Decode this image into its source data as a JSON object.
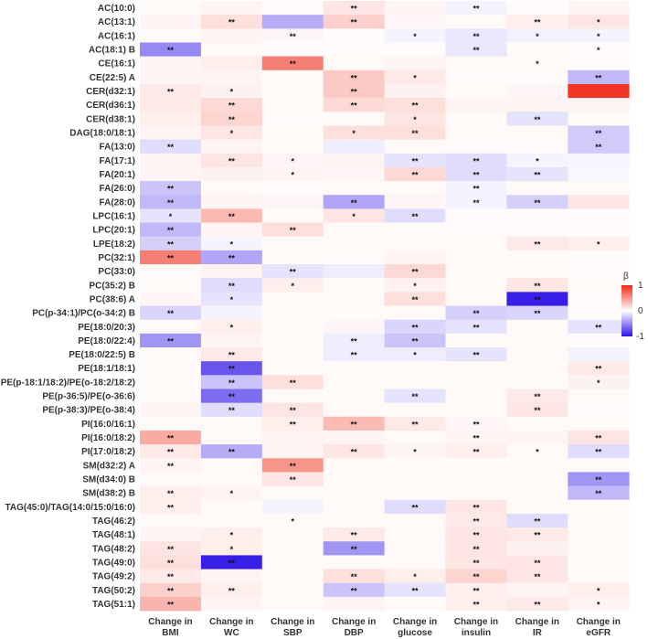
{
  "chart_data": {
    "type": "heatmap",
    "title": "",
    "legend": {
      "title": "β",
      "ticks": [
        "1",
        "0",
        "-1"
      ],
      "max": 1,
      "min": -1,
      "colors": {
        "high": "#ef2a16",
        "mid": "#ffffff",
        "low": "#2e13e6"
      }
    },
    "columns": [
      [
        "Change in",
        "BMI"
      ],
      [
        "Change in",
        "WC"
      ],
      [
        "Change in",
        "SBP"
      ],
      [
        "Change in",
        "DBP"
      ],
      [
        "Change in",
        "glucose"
      ],
      [
        "Change in",
        "insulin"
      ],
      [
        "Change in",
        "IR"
      ],
      [
        "Change in",
        "eGFR"
      ]
    ],
    "rows": [
      {
        "label": "AC(10:0)",
        "values": [
          0.03,
          0.05,
          0.02,
          0.12,
          0.05,
          -0.05,
          0.02,
          0.05
        ],
        "sig": [
          "",
          "",
          "",
          "**",
          "",
          "**",
          "",
          ""
        ]
      },
      {
        "label": "AC(13:1)",
        "values": [
          0.05,
          0.15,
          -0.35,
          0.22,
          0.04,
          0.03,
          0.08,
          0.12
        ],
        "sig": [
          "",
          "**",
          "",
          "**",
          "",
          "",
          "**",
          "*"
        ]
      },
      {
        "label": "AC(16:1)",
        "values": [
          0.03,
          0.05,
          0.04,
          0.02,
          -0.05,
          -0.1,
          -0.06,
          -0.05
        ],
        "sig": [
          "",
          "",
          "**",
          "",
          "*",
          "**",
          "*",
          "*"
        ]
      },
      {
        "label": "AC(18:1) B",
        "values": [
          -0.5,
          0.03,
          0.02,
          0.02,
          0.02,
          -0.1,
          0.03,
          0.02
        ],
        "sig": [
          "**",
          "",
          "",
          "",
          "",
          "**",
          "",
          "*"
        ]
      },
      {
        "label": "CE(16:1)",
        "values": [
          0.05,
          0.08,
          0.6,
          0.03,
          0.05,
          0.03,
          0.03,
          0.02
        ],
        "sig": [
          "",
          "",
          "**",
          "",
          "",
          "",
          "*",
          ""
        ]
      },
      {
        "label": "CE(22:5) A",
        "values": [
          0.05,
          0.05,
          0.03,
          0.25,
          0.1,
          0.02,
          0.02,
          -0.3
        ],
        "sig": [
          "",
          "",
          "",
          "**",
          "*",
          "",
          "",
          "**"
        ]
      },
      {
        "label": "CER(d32:1)",
        "values": [
          0.1,
          0.06,
          0.03,
          0.25,
          0.06,
          0.03,
          0.04,
          0.95
        ],
        "sig": [
          "**",
          "*",
          "",
          "**",
          "",
          "",
          "",
          ""
        ]
      },
      {
        "label": "CER(d36:1)",
        "values": [
          0.1,
          0.18,
          0.03,
          0.18,
          0.15,
          0.05,
          0.05,
          0.05
        ],
        "sig": [
          "",
          "**",
          "",
          "**",
          "**",
          "",
          "",
          ""
        ]
      },
      {
        "label": "CER(d38:1)",
        "values": [
          0.08,
          0.2,
          0.02,
          0.03,
          0.12,
          0.03,
          -0.12,
          0.03
        ],
        "sig": [
          "",
          "**",
          "",
          "",
          "*",
          "",
          "**",
          ""
        ]
      },
      {
        "label": "DAG(18:0/18:1)",
        "values": [
          0.05,
          0.12,
          0.03,
          0.15,
          0.15,
          0.03,
          0.03,
          -0.22
        ],
        "sig": [
          "",
          "*",
          "",
          "*",
          "**",
          "",
          "",
          "**"
        ]
      },
      {
        "label": "FA(13:0)",
        "values": [
          -0.15,
          0.05,
          0.03,
          -0.08,
          0.03,
          0.02,
          0.02,
          -0.22
        ],
        "sig": [
          "**",
          "",
          "",
          "",
          "",
          "",
          "",
          "**"
        ]
      },
      {
        "label": "FA(17:1)",
        "values": [
          0.05,
          0.12,
          0.04,
          0.05,
          -0.12,
          -0.15,
          -0.05,
          -0.04
        ],
        "sig": [
          "",
          "**",
          "*",
          "",
          "**",
          "**",
          "*",
          ""
        ]
      },
      {
        "label": "FA(20:1)",
        "values": [
          0.05,
          0.06,
          0.05,
          0.04,
          0.18,
          -0.15,
          -0.12,
          -0.03
        ],
        "sig": [
          "",
          "",
          "*",
          "",
          "**",
          "**",
          "**",
          ""
        ]
      },
      {
        "label": "FA(26:0)",
        "values": [
          -0.25,
          0.03,
          0.02,
          0.03,
          0.03,
          -0.05,
          0.03,
          0.03
        ],
        "sig": [
          "**",
          "",
          "",
          "",
          "",
          "**",
          "",
          ""
        ]
      },
      {
        "label": "FA(28:0)",
        "values": [
          -0.3,
          0.05,
          0.04,
          -0.38,
          0.04,
          -0.05,
          -0.2,
          0.12
        ],
        "sig": [
          "**",
          "",
          "",
          "**",
          "",
          "**",
          "**",
          ""
        ]
      },
      {
        "label": "LPC(16:1)",
        "values": [
          -0.12,
          0.32,
          0.03,
          0.12,
          -0.15,
          0.02,
          0.02,
          0.02
        ],
        "sig": [
          "*",
          "**",
          "",
          "*",
          "**",
          "",
          "",
          ""
        ]
      },
      {
        "label": "LPC(20:1)",
        "values": [
          -0.3,
          0.05,
          0.15,
          0.03,
          0.02,
          0.02,
          0.02,
          0.02
        ],
        "sig": [
          "**",
          "",
          "**",
          "",
          "",
          "",
          "",
          ""
        ]
      },
      {
        "label": "LPE(18:2)",
        "values": [
          -0.2,
          -0.05,
          0.03,
          0.03,
          0.03,
          0.03,
          0.1,
          0.08
        ],
        "sig": [
          "**",
          "*",
          "",
          "",
          "",
          "",
          "**",
          "*"
        ]
      },
      {
        "label": "PC(32:1)",
        "values": [
          0.6,
          -0.38,
          0.03,
          0.02,
          0.05,
          0.03,
          0.03,
          0.02
        ],
        "sig": [
          "**",
          "**",
          "",
          "",
          "",
          "",
          "",
          ""
        ]
      },
      {
        "label": "PC(33:0)",
        "values": [
          0.02,
          0.05,
          -0.12,
          -0.08,
          0.18,
          0.03,
          0.03,
          0.02
        ],
        "sig": [
          "",
          "",
          "**",
          "",
          "**",
          "",
          "",
          ""
        ]
      },
      {
        "label": "PC(35:2) B",
        "values": [
          0.03,
          -0.15,
          0.08,
          0.03,
          0.06,
          0.03,
          0.12,
          0.03
        ],
        "sig": [
          "",
          "**",
          "*",
          "",
          "*",
          "",
          "**",
          ""
        ]
      },
      {
        "label": "PC(38:6) A",
        "values": [
          0.04,
          -0.12,
          0.03,
          0.03,
          0.15,
          0.03,
          -0.95,
          0.02
        ],
        "sig": [
          "",
          "*",
          "",
          "",
          "**",
          "",
          "**",
          ""
        ]
      },
      {
        "label": "PC(p-34:1)/PC(o-34:2) B",
        "values": [
          -0.18,
          -0.05,
          0.03,
          0.03,
          0.03,
          -0.2,
          -0.18,
          0.02
        ],
        "sig": [
          "**",
          "",
          "",
          "",
          "",
          "**",
          "**",
          ""
        ]
      },
      {
        "label": "PE(18:0/20:3)",
        "values": [
          0.03,
          0.08,
          0.03,
          0.04,
          -0.18,
          -0.12,
          0.03,
          -0.12
        ],
        "sig": [
          "",
          "*",
          "",
          "",
          "**",
          "**",
          "",
          "**"
        ]
      },
      {
        "label": "PE(18:0/22:4)",
        "values": [
          -0.45,
          0.05,
          0.03,
          -0.08,
          -0.25,
          0.03,
          0.03,
          0.02
        ],
        "sig": [
          "**",
          "",
          "",
          "**",
          "**",
          "",
          "",
          ""
        ]
      },
      {
        "label": "PE(18:0/22:5) B",
        "values": [
          0.03,
          0.1,
          0.03,
          -0.08,
          -0.08,
          -0.12,
          0.03,
          -0.05
        ],
        "sig": [
          "",
          "**",
          "",
          "**",
          "*",
          "**",
          "",
          ""
        ]
      },
      {
        "label": "PE(18:1/18:1)",
        "values": [
          0.03,
          -0.72,
          0.03,
          0.03,
          0.03,
          0.03,
          0.03,
          0.1
        ],
        "sig": [
          "",
          "**",
          "",
          "",
          "",
          "",
          "",
          "**"
        ]
      },
      {
        "label": "PE(p-18:1/18:2)/PE(o-18:2/18:2)",
        "values": [
          0.03,
          -0.25,
          0.15,
          0.03,
          0.03,
          0.03,
          0.03,
          0.06
        ],
        "sig": [
          "",
          "**",
          "**",
          "",
          "",
          "",
          "",
          "*"
        ]
      },
      {
        "label": "PE(p-36:5)/PE(o-36:6)",
        "values": [
          0.03,
          -0.62,
          0.03,
          0.03,
          -0.12,
          0.03,
          0.1,
          0.03
        ],
        "sig": [
          "",
          "**",
          "",
          "",
          "**",
          "",
          "**",
          ""
        ]
      },
      {
        "label": "PE(p-38:3)/PE(o-38:4)",
        "values": [
          0.05,
          -0.15,
          0.12,
          0.03,
          0.03,
          0.03,
          0.12,
          0.02
        ],
        "sig": [
          "",
          "**",
          "**",
          "",
          "",
          "",
          "**",
          ""
        ]
      },
      {
        "label": "PI(16:0/16:1)",
        "values": [
          0.03,
          0.03,
          0.08,
          0.32,
          0.1,
          0.04,
          0.03,
          0.03
        ],
        "sig": [
          "",
          "",
          "**",
          "**",
          "**",
          "**",
          "",
          ""
        ]
      },
      {
        "label": "PI(16:0/18:2)",
        "values": [
          0.4,
          0.03,
          0.05,
          0.05,
          0.03,
          0.05,
          0.05,
          0.12
        ],
        "sig": [
          "**",
          "",
          "",
          "",
          "",
          "**",
          "",
          "**"
        ]
      },
      {
        "label": "PI(17:0/18:2)",
        "values": [
          0.1,
          -0.35,
          0.05,
          0.12,
          0.05,
          0.08,
          0.03,
          -0.15
        ],
        "sig": [
          "**",
          "**",
          "",
          "**",
          "*",
          "**",
          "*",
          "**"
        ]
      },
      {
        "label": "SM(d32:2) A",
        "values": [
          0.05,
          0.03,
          0.5,
          0.03,
          0.03,
          0.03,
          0.03,
          0.03
        ],
        "sig": [
          "**",
          "",
          "**",
          "",
          "",
          "",
          "",
          ""
        ]
      },
      {
        "label": "SM(d34:0) B",
        "values": [
          0.03,
          0.03,
          0.12,
          0.03,
          0.03,
          0.03,
          0.03,
          -0.45
        ],
        "sig": [
          "",
          "",
          "**",
          "",
          "",
          "",
          "",
          "**"
        ]
      },
      {
        "label": "SM(d38:2) B",
        "values": [
          0.08,
          0.05,
          0.03,
          0.03,
          0.03,
          0.03,
          0.03,
          -0.3
        ],
        "sig": [
          "**",
          "*",
          "",
          "",
          "",
          "",
          "",
          "**"
        ]
      },
      {
        "label": "TAG(45:0)/TAG(14:0/15:0/16:0)",
        "values": [
          0.08,
          0.03,
          -0.05,
          0.03,
          -0.15,
          0.12,
          0.03,
          0.03
        ],
        "sig": [
          "**",
          "",
          "",
          "",
          "**",
          "**",
          "",
          ""
        ]
      },
      {
        "label": "TAG(46:2)",
        "values": [
          0.03,
          0.03,
          0.03,
          0.03,
          0.03,
          0.1,
          -0.15,
          0.03
        ],
        "sig": [
          "",
          "",
          "*",
          "",
          "",
          "**",
          "**",
          ""
        ]
      },
      {
        "label": "TAG(48:1)",
        "values": [
          0.05,
          0.08,
          0.03,
          0.1,
          0.03,
          0.12,
          0.1,
          0.03
        ],
        "sig": [
          "",
          "*",
          "",
          "**",
          "",
          "**",
          "**",
          ""
        ]
      },
      {
        "label": "TAG(48:2)",
        "values": [
          0.12,
          0.08,
          0.03,
          -0.45,
          0.03,
          0.12,
          0.06,
          0.03
        ],
        "sig": [
          "**",
          "*",
          "",
          "**",
          "",
          "**",
          "",
          ""
        ]
      },
      {
        "label": "TAG(49:0)",
        "values": [
          0.15,
          -0.95,
          0.03,
          0.03,
          0.03,
          0.12,
          0.12,
          0.03
        ],
        "sig": [
          "**",
          "**",
          "",
          "",
          "",
          "**",
          "**",
          ""
        ]
      },
      {
        "label": "TAG(49:2)",
        "values": [
          0.1,
          0.05,
          0.03,
          0.15,
          0.08,
          0.2,
          0.12,
          0.03
        ],
        "sig": [
          "**",
          "",
          "",
          "**",
          "*",
          "**",
          "**",
          ""
        ]
      },
      {
        "label": "TAG(50:2)",
        "values": [
          0.22,
          0.08,
          0.03,
          -0.25,
          -0.12,
          0.08,
          0.05,
          0.08
        ],
        "sig": [
          "**",
          "**",
          "",
          "**",
          "**",
          "**",
          "",
          "*"
        ]
      },
      {
        "label": "TAG(51:1)",
        "values": [
          0.35,
          0.05,
          0.03,
          0.05,
          0.03,
          0.08,
          0.1,
          0.05
        ],
        "sig": [
          "**",
          "",
          "",
          "",
          "",
          "**",
          "**",
          "*"
        ]
      }
    ]
  }
}
